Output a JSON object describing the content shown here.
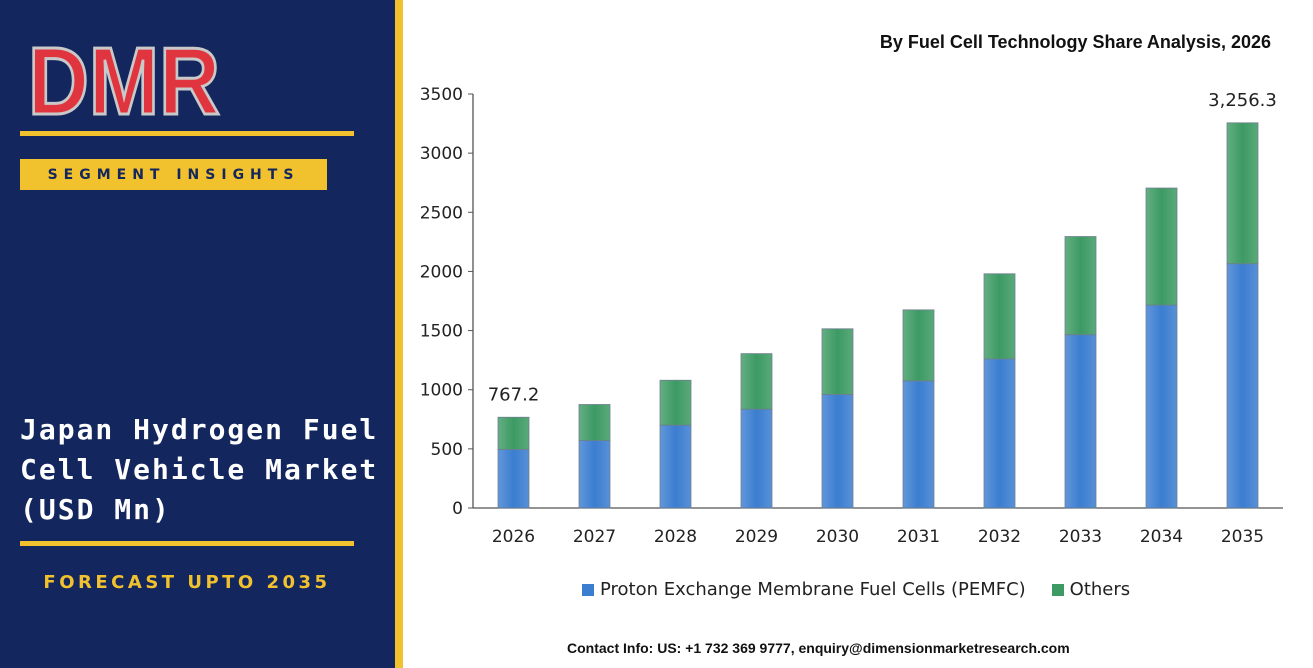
{
  "brand": {
    "logo_text": "DMR",
    "colors": {
      "navy": "#13275e",
      "gold": "#f2c12e",
      "logo_red": "#e0353f",
      "logo_gray": "#c9c9c9"
    }
  },
  "sidebar": {
    "segment_label": "SEGMENT INSIGHTS",
    "market_title": "Japan Hydrogen Fuel Cell Vehicle Market (USD Mn)",
    "forecast": "FORECAST UPTO 2035"
  },
  "chart_title": "By Fuel Cell Technology Share Analysis, 2026",
  "contact": "Contact Info: US: +1 732 369 9777, enquiry@dimensionmarketresearch.com",
  "chart_data": {
    "type": "bar",
    "stacked": true,
    "title": "By Fuel Cell Technology Share Analysis, 2026",
    "categories": [
      "2026",
      "2027",
      "2028",
      "2029",
      "2030",
      "2031",
      "2032",
      "2033",
      "2034",
      "2035"
    ],
    "series": [
      {
        "name": "Proton Exchange Membrane Fuel Cells (PEMFC)",
        "color": "#3b7dd0",
        "values": [
          495,
          570,
          700,
          835,
          960,
          1075,
          1260,
          1465,
          1715,
          2065
        ]
      },
      {
        "name": "Others",
        "color": "#3d9a63",
        "values": [
          272.2,
          305,
          380,
          470,
          555,
          600,
          720,
          830,
          990,
          1191.3
        ]
      }
    ],
    "totals": [
      767.2,
      875,
      1080,
      1305,
      1515,
      1675,
      1980,
      2295,
      2705,
      3256.3
    ],
    "data_labels": [
      {
        "category": "2026",
        "text": "767.2"
      },
      {
        "category": "2035",
        "text": "3,256.3"
      }
    ],
    "y_ticks": [
      "0",
      "500",
      "1000",
      "1500",
      "2000",
      "2500",
      "3000",
      "3500"
    ],
    "ylim": [
      0,
      3500
    ],
    "grid": false,
    "legend_position": "bottom"
  }
}
